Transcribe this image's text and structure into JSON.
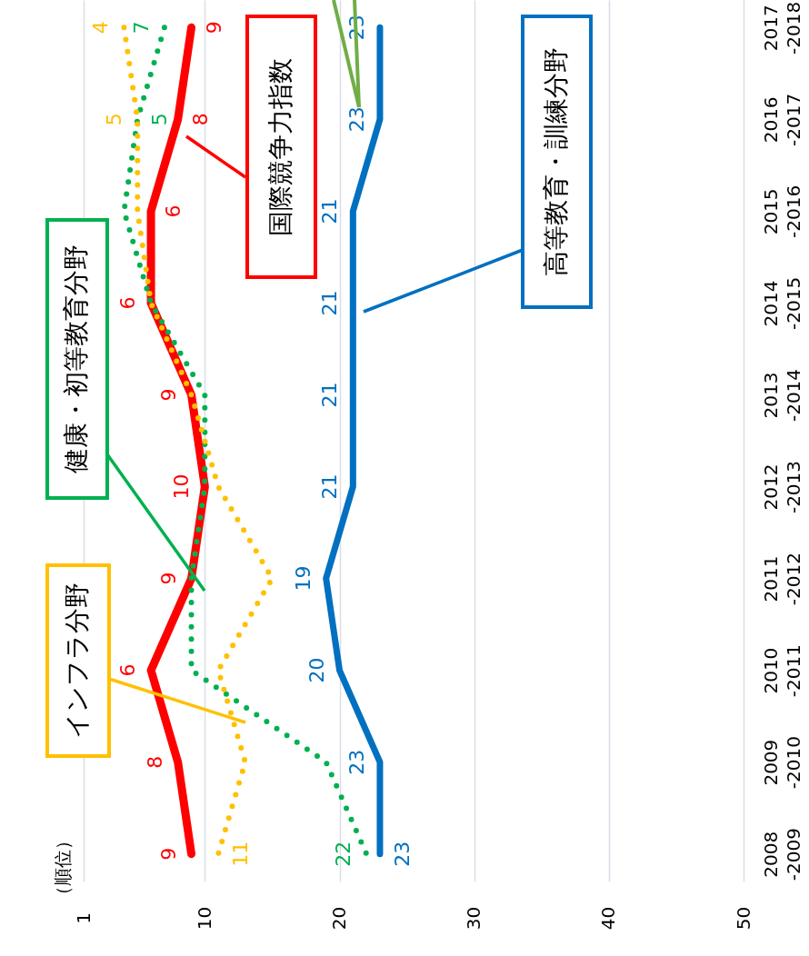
{
  "chart_data": {
    "type": "line",
    "orientation": "horizontal",
    "annotations": [
      "（順位）"
    ],
    "categories": [
      "2017\n-2018",
      "2016\n-2017",
      "2015\n-2016",
      "2014\n-2015",
      "2013\n-2014",
      "2012\n-2013",
      "2011\n-2012",
      "2010\n-2011",
      "2009\n-2010",
      "2008\n-2009"
    ],
    "xlim": [
      1,
      50
    ],
    "xticks": [
      1,
      10,
      20,
      30,
      40,
      50
    ],
    "grid": "x",
    "series": [
      {
        "name": "国際競争力指数",
        "color": "#ff0000",
        "line_style": "solid",
        "values": [
          9,
          8,
          6,
          6,
          9,
          10,
          9,
          6,
          8,
          9
        ],
        "value_labels": [
          "9",
          "8",
          "6",
          "6",
          "9",
          "10",
          "9",
          "6",
          "8",
          "9"
        ]
      },
      {
        "name": "高等教育・訓練分野",
        "color": "#0070c0",
        "line_style": "solid",
        "values": [
          23,
          23,
          21,
          21,
          21,
          21,
          19,
          20,
          23,
          23
        ],
        "value_labels": [
          "23",
          "23",
          "21",
          "21",
          "21",
          "21",
          "19",
          "20",
          "23",
          "23"
        ]
      },
      {
        "name": "健康・初等教育分野",
        "color": "#00b050",
        "line_style": "dotted",
        "values": [
          7,
          5,
          4,
          6,
          10,
          10,
          9,
          9,
          19,
          22
        ],
        "value_labels": [
          "7",
          "5",
          null,
          null,
          null,
          null,
          null,
          null,
          null,
          "22"
        ]
      },
      {
        "name": "インフラ分野",
        "color": "#ffc000",
        "line_style": "dotted",
        "values": [
          4,
          5,
          5,
          6,
          9,
          11,
          15,
          11,
          13,
          11
        ],
        "value_labels": [
          "4",
          "5",
          null,
          null,
          null,
          null,
          null,
          null,
          null,
          "11"
        ]
      }
    ]
  }
}
